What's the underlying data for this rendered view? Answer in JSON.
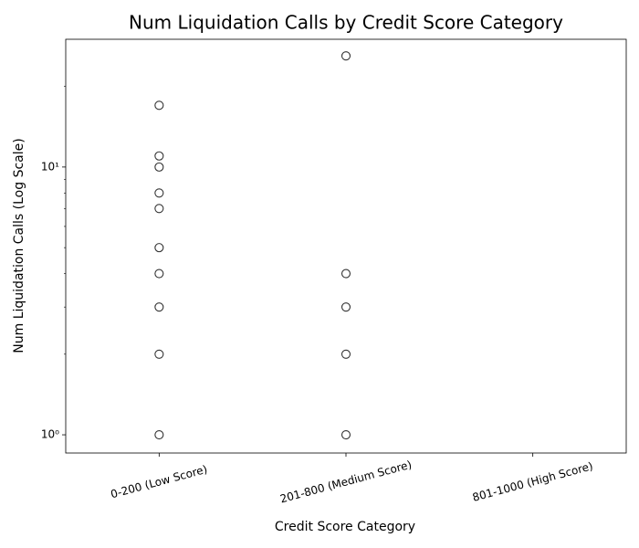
{
  "chart_data": {
    "type": "strip",
    "title": "Num Liquidation Calls by Credit Score Category",
    "x_label": "Credit Score Category",
    "y_label": "Num Liquidation Calls (Log Scale)",
    "categories": [
      "0-200 (Low Score)",
      "201-800 (Medium Score)",
      "801-1000 (High Score)"
    ],
    "values": [
      [
        17,
        11,
        10,
        8,
        7,
        5,
        4,
        3,
        2,
        1
      ],
      [
        26,
        4,
        3,
        2,
        1
      ],
      []
    ],
    "color": "#333333",
    "log_y": true,
    "ylim": [
      0.855,
      30
    ],
    "yticks": [
      {
        "value": 1,
        "label": "10⁰"
      },
      {
        "value": 10,
        "label": "10¹"
      }
    ],
    "yticks_minor": [
      2,
      3,
      4,
      5,
      6,
      7,
      8,
      9,
      20
    ]
  }
}
